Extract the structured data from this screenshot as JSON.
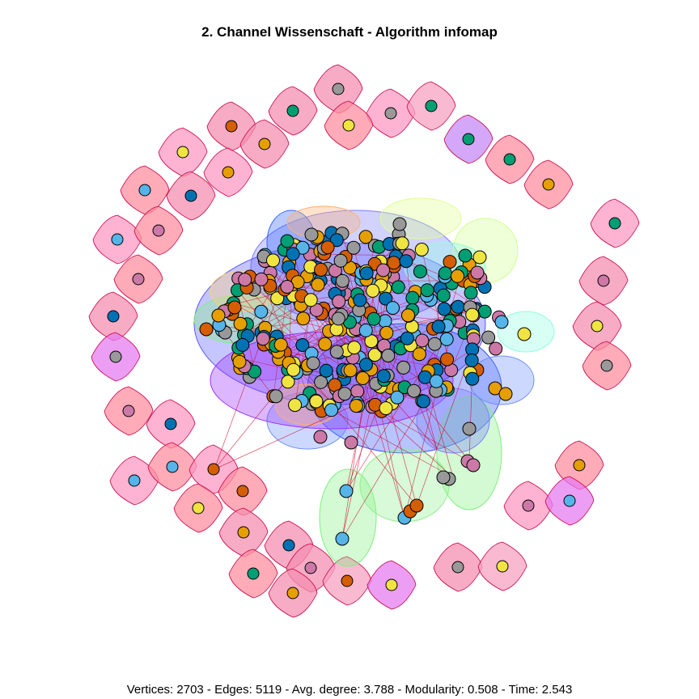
{
  "title": "2. Channel Wissenschaft - Algorithm infomap",
  "footer": "Vertices: 2703 - Edges: 5119 - Avg. degree: 3.788 - Modularity: 0.508 - Time: 2.543",
  "colors": {
    "node_palette": [
      "#e69f00",
      "#56b4e9",
      "#009e73",
      "#f0e442",
      "#0072b2",
      "#d55e00",
      "#cc79a7",
      "#999999"
    ],
    "hull_palette": [
      "#f48fb1",
      "#ff9ac4",
      "#f7a1c2",
      "#ff8fa0",
      "#e57cf0",
      "#c58af5",
      "#7f7fff",
      "#80f080",
      "#90ffe0",
      "#ffb070",
      "#e0ff90"
    ],
    "hull_stroke": "#cc0044",
    "edge": "#cc0022"
  }
}
